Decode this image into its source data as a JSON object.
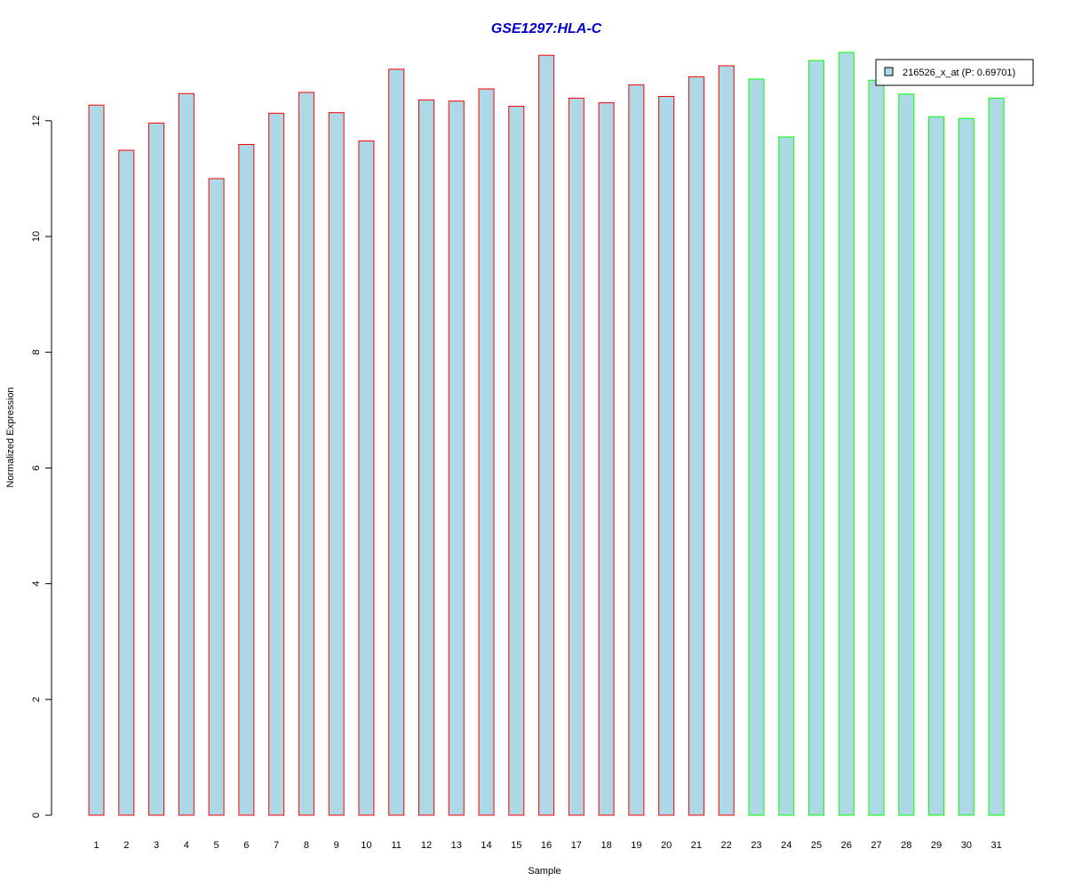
{
  "colors": {
    "bar_fill": "#add8e6",
    "group1_border": "#ff0000",
    "group2_border": "#00ff00",
    "title": "#0000cc",
    "axis": "#000000"
  },
  "chart_data": {
    "type": "bar",
    "title": "GSE1297:HLA-C",
    "xlabel": "Sample",
    "ylabel": "Normalized Expression",
    "ylim": [
      0,
      13.2
    ],
    "yticks": [
      0,
      2,
      4,
      6,
      8,
      10,
      12
    ],
    "grid": false,
    "legend_position": "top-right",
    "categories": [
      "1",
      "2",
      "3",
      "4",
      "5",
      "6",
      "7",
      "8",
      "9",
      "10",
      "11",
      "12",
      "13",
      "14",
      "15",
      "16",
      "17",
      "18",
      "19",
      "20",
      "21",
      "22",
      "23",
      "24",
      "25",
      "26",
      "27",
      "28",
      "29",
      "30",
      "31"
    ],
    "series": [
      {
        "name": "216526_x_at (P: 0.69701)",
        "values": [
          12.27,
          11.49,
          11.96,
          12.47,
          11.0,
          11.59,
          12.13,
          12.49,
          12.14,
          11.65,
          12.89,
          12.36,
          12.34,
          12.55,
          12.25,
          13.13,
          12.39,
          12.31,
          12.62,
          12.42,
          12.76,
          12.95,
          12.72,
          11.72,
          13.04,
          13.18,
          12.7,
          12.46,
          12.07,
          12.04,
          12.39
        ],
        "groups": [
          1,
          1,
          1,
          1,
          1,
          1,
          1,
          1,
          1,
          1,
          1,
          1,
          1,
          1,
          1,
          1,
          1,
          1,
          1,
          1,
          1,
          1,
          2,
          2,
          2,
          2,
          2,
          2,
          2,
          2,
          2
        ]
      }
    ]
  }
}
